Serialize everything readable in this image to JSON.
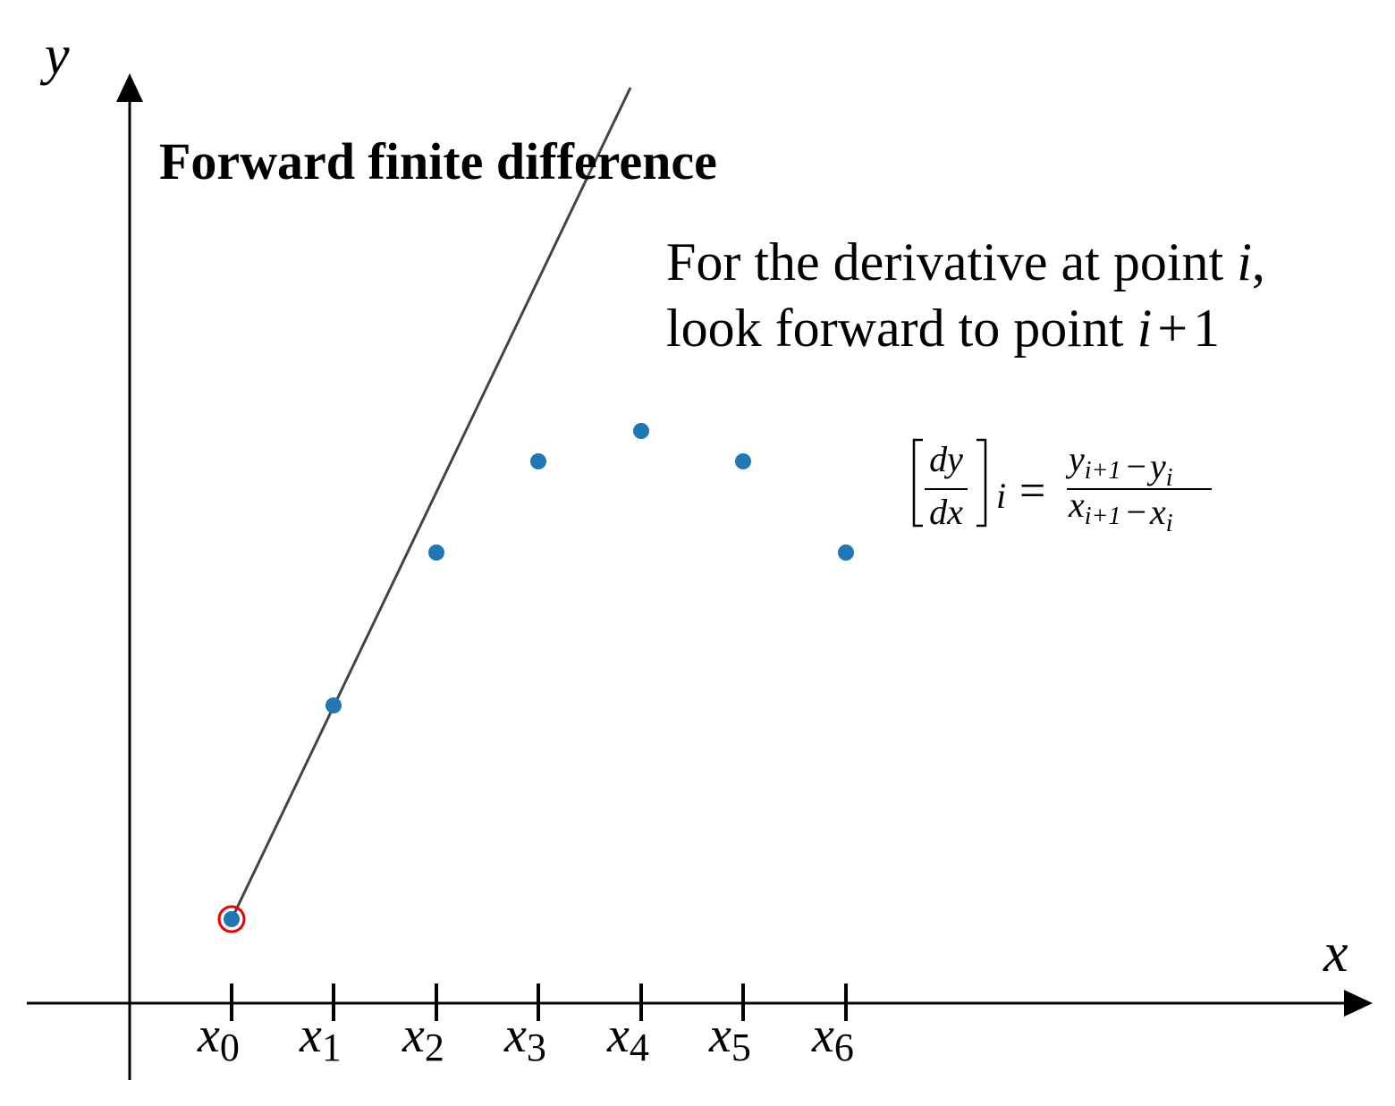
{
  "title": "Forward finite difference",
  "axes": {
    "x_label": "x",
    "y_label": "y"
  },
  "annotation": {
    "line1": {
      "text": "For the derivative at point ",
      "var": "i",
      "end": ","
    },
    "line2": {
      "text": "look forward to point ",
      "var": "i",
      "op": "+",
      "num": "1"
    }
  },
  "ticks": [
    {
      "base": "x",
      "sub": "0"
    },
    {
      "base": "x",
      "sub": "1"
    },
    {
      "base": "x",
      "sub": "2"
    },
    {
      "base": "x",
      "sub": "3"
    },
    {
      "base": "x",
      "sub": "4"
    },
    {
      "base": "x",
      "sub": "5"
    },
    {
      "base": "x",
      "sub": "6"
    }
  ],
  "formula": {
    "lhs_numerator": "dy",
    "lhs_denominator": "dx",
    "lhs_index": "i",
    "equals": "=",
    "rhs_numerator": [
      {
        "base": "y",
        "sub": "i+1"
      },
      {
        "op": "−"
      },
      {
        "base": "y",
        "sub": "i"
      }
    ],
    "rhs_denominator": [
      {
        "base": "x",
        "sub": "i+1"
      },
      {
        "op": "−"
      },
      {
        "base": "x",
        "sub": "i"
      }
    ]
  }
}
